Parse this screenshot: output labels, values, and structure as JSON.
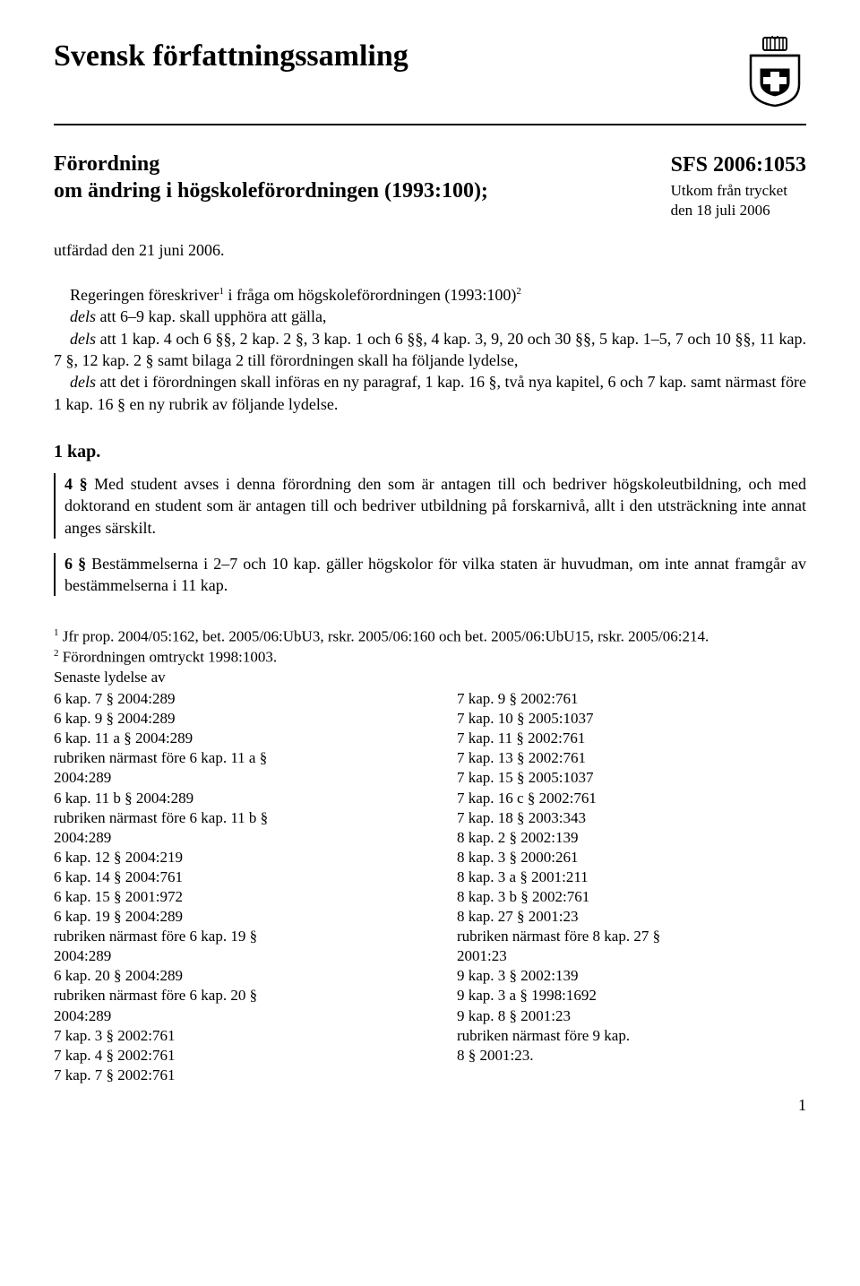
{
  "header": {
    "main_title": "Svensk författningssamling",
    "ordinance_line1": "Förordning",
    "ordinance_line2": "om ändring i högskoleförordningen (1993:100);",
    "sfs_number": "SFS 2006:1053",
    "sfs_sub1": "Utkom från trycket",
    "sfs_sub2": "den 18 juli 2006",
    "issued": "utfärdad den 21 juni 2006."
  },
  "preamble": {
    "line1_a": "Regeringen föreskriver",
    "line1_b": " i fråga om högskoleförordningen (1993:100)",
    "dels1_a": "dels",
    "dels1_b": " att 6–9 kap. skall upphöra att gälla,",
    "dels2_a": "dels",
    "dels2_b": " att 1 kap. 4 och 6 §§, 2 kap. 2 §, 3 kap. 1 och 6 §§, 4 kap. 3, 9, 20 och 30 §§, 5 kap. 1–5, 7 och 10 §§, 11 kap. 7 §, 12 kap. 2 § samt bilaga 2 till förordningen skall ha följande lydelse,",
    "dels3_a": "dels",
    "dels3_b": " att det i förordningen skall införas en ny paragraf, 1 kap. 16 §, två nya kapitel, 6 och 7 kap. samt närmast före 1 kap. 16 § en ny rubrik av följande lydelse."
  },
  "kap1": {
    "heading": "1 kap.",
    "p4_lead": "4 §",
    "p4_body": "   Med student avses i denna förordning den som är antagen till och bedriver högskoleutbildning, och med doktorand en student som är antagen till och bedriver utbildning på forskarnivå, allt i den utsträckning inte annat anges särskilt.",
    "p6_lead": "6 §",
    "p6_body": "   Bestämmelserna i 2–7 och 10 kap. gäller högskolor för vilka staten är huvudman, om inte annat framgår av bestämmelserna i 11 kap."
  },
  "footnotes": {
    "fn1": " Jfr  prop.  2004/05:162,  bet.  2005/06:UbU3,  rskr.  2005/06:160  och  bet. 2005/06:UbU15, rskr. 2005/06:214.",
    "fn2": " Förordningen omtryckt 1998:1003.",
    "latest": "Senaste lydelse av",
    "left": [
      "6 kap. 7 § 2004:289",
      "6 kap. 9 § 2004:289",
      "6 kap. 11 a § 2004:289",
      "rubriken närmast före 6 kap. 11 a §",
      "2004:289",
      "6 kap. 11 b § 2004:289",
      "rubriken närmast före 6 kap. 11 b §",
      "2004:289",
      "6 kap. 12 § 2004:219",
      "6 kap. 14 § 2004:761",
      "6 kap. 15 § 2001:972",
      "6 kap. 19 § 2004:289",
      "rubriken närmast före 6 kap. 19 §",
      "2004:289",
      "6 kap. 20 § 2004:289",
      "rubriken närmast före 6 kap. 20 §",
      "2004:289",
      "7 kap. 3 § 2002:761",
      "7 kap. 4 § 2002:761",
      "7 kap. 7 § 2002:761"
    ],
    "right": [
      "7 kap. 9 § 2002:761",
      "7 kap. 10 § 2005:1037",
      "7 kap. 11 § 2002:761",
      "7 kap. 13 § 2002:761",
      "7 kap. 15 § 2005:1037",
      "7 kap. 16 c § 2002:761",
      "7 kap. 18 § 2003:343",
      "8 kap. 2 § 2002:139",
      "8 kap. 3 § 2000:261",
      "8 kap. 3 a § 2001:211",
      "8 kap. 3 b § 2002:761",
      "8 kap. 27 § 2001:23",
      "rubriken närmast före 8 kap. 27 §",
      "2001:23",
      "9 kap. 3 § 2002:139",
      "9 kap. 3 a § 1998:1692",
      "9 kap. 8 § 2001:23",
      "rubriken närmast före 9 kap.",
      "8 § 2001:23."
    ]
  },
  "page_number": "1"
}
